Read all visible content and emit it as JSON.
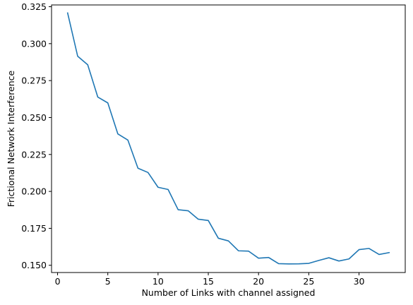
{
  "chart_data": {
    "type": "line",
    "title": "",
    "xlabel": "Number of Links with channel assigned",
    "ylabel": "Frictional Network Interference",
    "xlim": [
      -0.6,
      34.6
    ],
    "ylim": [
      0.1451,
      0.3262
    ],
    "xticks": [
      0,
      5,
      10,
      15,
      20,
      25,
      30
    ],
    "xtick_labels": [
      "0",
      "5",
      "10",
      "15",
      "20",
      "25",
      "30"
    ],
    "yticks": [
      0.15,
      0.175,
      0.2,
      0.225,
      0.25,
      0.275,
      0.3,
      0.325
    ],
    "ytick_labels": [
      "0.150",
      "0.175",
      "0.200",
      "0.225",
      "0.250",
      "0.275",
      "0.300",
      "0.325"
    ],
    "grid": false,
    "series": [
      {
        "color": "#1f77b4",
        "x": [
          1,
          2,
          3,
          4,
          5,
          6,
          7,
          8,
          9,
          10,
          11,
          12,
          13,
          14,
          15,
          16,
          17,
          18,
          19,
          20,
          21,
          22,
          23,
          24,
          25,
          26,
          27,
          28,
          29,
          30,
          31,
          32,
          33
        ],
        "y": [
          0.3208,
          0.2915,
          0.2857,
          0.2639,
          0.2599,
          0.2389,
          0.2347,
          0.2157,
          0.2128,
          0.2028,
          0.2013,
          0.1876,
          0.1869,
          0.1812,
          0.1803,
          0.1683,
          0.1665,
          0.1598,
          0.1596,
          0.1548,
          0.1553,
          0.1511,
          0.1509,
          0.151,
          0.1513,
          0.1533,
          0.1551,
          0.1529,
          0.1543,
          0.1606,
          0.1614,
          0.1573,
          0.1586
        ]
      }
    ]
  }
}
